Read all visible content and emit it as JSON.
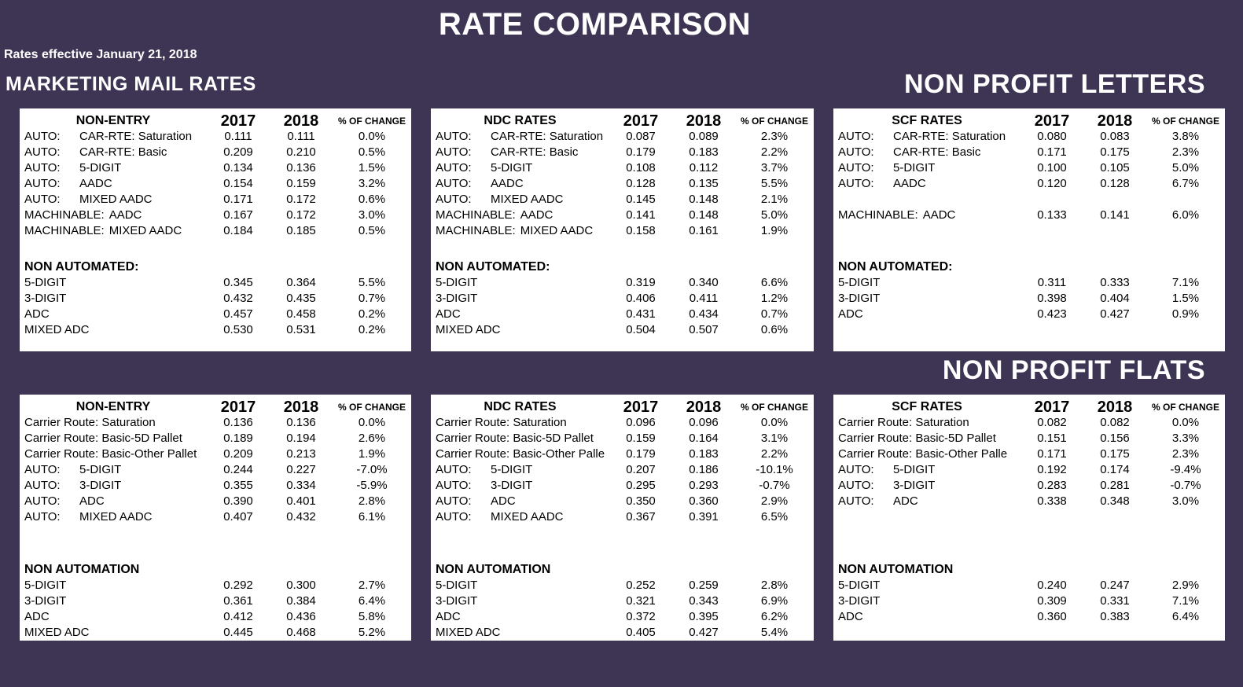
{
  "page": {
    "title": "RATE COMPARISON",
    "subtitle": "Rates effective January 21, 2018",
    "left_heading": "MARKETING MAIL RATES",
    "right_heading_letters": "NON PROFIT LETTERS",
    "right_heading_flats": "NON PROFIT FLATS"
  },
  "colors": {
    "background": "#3e3454",
    "table_background": "#ffffff",
    "table_text": "#000000",
    "heading_text": "#ffffff"
  },
  "columns": {
    "y2017": "2017",
    "y2018": "2018",
    "change": "% OF CHANGE"
  },
  "tables": [
    {
      "id": "letters-non-entry",
      "name": "NON-ENTRY",
      "rows": [
        {
          "type": "data",
          "prefix": "AUTO:",
          "label": "CAR-RTE: Saturation",
          "v2017": "0.111",
          "v2018": "0.111",
          "change": "0.0%"
        },
        {
          "type": "data",
          "prefix": "AUTO:",
          "label": "CAR-RTE: Basic",
          "v2017": "0.209",
          "v2018": "0.210",
          "change": "0.5%"
        },
        {
          "type": "data",
          "prefix": "AUTO:",
          "label": "5-DIGIT",
          "v2017": "0.134",
          "v2018": "0.136",
          "change": "1.5%"
        },
        {
          "type": "data",
          "prefix": "AUTO:",
          "label": "AADC",
          "v2017": "0.154",
          "v2018": "0.159",
          "change": "3.2%"
        },
        {
          "type": "data",
          "prefix": "AUTO:",
          "label": "MIXED AADC",
          "v2017": "0.171",
          "v2018": "0.172",
          "change": "0.6%"
        },
        {
          "type": "data",
          "prefix": "MACHINABLE:",
          "label": "AADC",
          "v2017": "0.167",
          "v2018": "0.172",
          "change": "3.0%"
        },
        {
          "type": "data",
          "prefix": "MACHINABLE:",
          "label": "MIXED AADC",
          "v2017": "0.184",
          "v2018": "0.185",
          "change": "0.5%"
        },
        {
          "type": "gap",
          "units": 1.3
        },
        {
          "type": "section",
          "label": "NON AUTOMATED:"
        },
        {
          "type": "data",
          "label": "5-DIGIT",
          "v2017": "0.345",
          "v2018": "0.364",
          "change": "5.5%"
        },
        {
          "type": "data",
          "label": "3-DIGIT",
          "v2017": "0.432",
          "v2018": "0.435",
          "change": "0.7%"
        },
        {
          "type": "data",
          "label": "ADC",
          "v2017": "0.457",
          "v2018": "0.458",
          "change": "0.2%"
        },
        {
          "type": "data",
          "label": "MIXED ADC",
          "v2017": "0.530",
          "v2018": "0.531",
          "change": "0.2%"
        }
      ]
    },
    {
      "id": "letters-ndc",
      "name": "NDC RATES",
      "rows": [
        {
          "type": "data",
          "prefix": "AUTO:",
          "label": "CAR-RTE: Saturation",
          "v2017": "0.087",
          "v2018": "0.089",
          "change": "2.3%"
        },
        {
          "type": "data",
          "prefix": "AUTO:",
          "label": "CAR-RTE: Basic",
          "v2017": "0.179",
          "v2018": "0.183",
          "change": "2.2%"
        },
        {
          "type": "data",
          "prefix": "AUTO:",
          "label": "5-DIGIT",
          "v2017": "0.108",
          "v2018": "0.112",
          "change": "3.7%"
        },
        {
          "type": "data",
          "prefix": "AUTO:",
          "label": "AADC",
          "v2017": "0.128",
          "v2018": "0.135",
          "change": "5.5%"
        },
        {
          "type": "data",
          "prefix": "AUTO:",
          "label": "MIXED AADC",
          "v2017": "0.145",
          "v2018": "0.148",
          "change": "2.1%"
        },
        {
          "type": "data",
          "prefix": "MACHINABLE:",
          "label": "AADC",
          "v2017": "0.141",
          "v2018": "0.148",
          "change": "5.0%"
        },
        {
          "type": "data",
          "prefix": "MACHINABLE:",
          "label": "MIXED AADC",
          "v2017": "0.158",
          "v2018": "0.161",
          "change": "1.9%"
        },
        {
          "type": "gap",
          "units": 1.3
        },
        {
          "type": "section",
          "label": "NON AUTOMATED:"
        },
        {
          "type": "data",
          "label": "5-DIGIT",
          "v2017": "0.319",
          "v2018": "0.340",
          "change": "6.6%"
        },
        {
          "type": "data",
          "label": "3-DIGIT",
          "v2017": "0.406",
          "v2018": "0.411",
          "change": "1.2%"
        },
        {
          "type": "data",
          "label": "ADC",
          "v2017": "0.431",
          "v2018": "0.434",
          "change": "0.7%"
        },
        {
          "type": "data",
          "label": "MIXED ADC",
          "v2017": "0.504",
          "v2018": "0.507",
          "change": "0.6%"
        }
      ]
    },
    {
      "id": "letters-scf",
      "name": "SCF RATES",
      "rows": [
        {
          "type": "data",
          "prefix": "AUTO:",
          "label": "CAR-RTE: Saturation",
          "v2017": "0.080",
          "v2018": "0.083",
          "change": "3.8%"
        },
        {
          "type": "data",
          "prefix": "AUTO:",
          "label": "CAR-RTE: Basic",
          "v2017": "0.171",
          "v2018": "0.175",
          "change": "2.3%"
        },
        {
          "type": "data",
          "prefix": "AUTO:",
          "label": "5-DIGIT",
          "v2017": "0.100",
          "v2018": "0.105",
          "change": "5.0%"
        },
        {
          "type": "data",
          "prefix": "AUTO:",
          "label": "AADC",
          "v2017": "0.120",
          "v2018": "0.128",
          "change": "6.7%"
        },
        {
          "type": "gap",
          "units": 1
        },
        {
          "type": "data",
          "prefix": "MACHINABLE:",
          "label": "AADC",
          "v2017": "0.133",
          "v2018": "0.141",
          "change": "6.0%"
        },
        {
          "type": "gap",
          "units": 1
        },
        {
          "type": "gap",
          "units": 1.3
        },
        {
          "type": "section",
          "label": "NON AUTOMATED:"
        },
        {
          "type": "data",
          "label": "5-DIGIT",
          "v2017": "0.311",
          "v2018": "0.333",
          "change": "7.1%"
        },
        {
          "type": "data",
          "label": "3-DIGIT",
          "v2017": "0.398",
          "v2018": "0.404",
          "change": "1.5%"
        },
        {
          "type": "data",
          "label": "ADC",
          "v2017": "0.423",
          "v2018": "0.427",
          "change": "0.9%"
        }
      ]
    },
    {
      "id": "flats-non-entry",
      "name": "NON-ENTRY",
      "rows": [
        {
          "type": "data",
          "label": "Carrier Route: Saturation",
          "v2017": "0.136",
          "v2018": "0.136",
          "change": "0.0%"
        },
        {
          "type": "data",
          "label": "Carrier Route: Basic-5D Pallet",
          "v2017": "0.189",
          "v2018": "0.194",
          "change": "2.6%"
        },
        {
          "type": "data",
          "label": "Carrier Route: Basic-Other Pallet",
          "v2017": "0.209",
          "v2018": "0.213",
          "change": "1.9%"
        },
        {
          "type": "data",
          "prefix": "AUTO:",
          "label": "5-DIGIT",
          "v2017": "0.244",
          "v2018": "0.227",
          "change": "-7.0%"
        },
        {
          "type": "data",
          "prefix": "AUTO:",
          "label": "3-DIGIT",
          "v2017": "0.355",
          "v2018": "0.334",
          "change": "-5.9%"
        },
        {
          "type": "data",
          "prefix": "AUTO:",
          "label": "ADC",
          "v2017": "0.390",
          "v2018": "0.401",
          "change": "2.8%"
        },
        {
          "type": "data",
          "prefix": "AUTO:",
          "label": "MIXED AADC",
          "v2017": "0.407",
          "v2018": "0.432",
          "change": "6.1%"
        },
        {
          "type": "gap",
          "units": 2.35
        },
        {
          "type": "section",
          "label": "NON AUTOMATION"
        },
        {
          "type": "data",
          "label": "5-DIGIT",
          "v2017": "0.292",
          "v2018": "0.300",
          "change": "2.7%"
        },
        {
          "type": "data",
          "label": "3-DIGIT",
          "v2017": "0.361",
          "v2018": "0.384",
          "change": "6.4%"
        },
        {
          "type": "data",
          "label": "ADC",
          "v2017": "0.412",
          "v2018": "0.436",
          "change": "5.8%"
        },
        {
          "type": "data",
          "label": "MIXED ADC",
          "v2017": "0.445",
          "v2018": "0.468",
          "change": "5.2%"
        }
      ]
    },
    {
      "id": "flats-ndc",
      "name": "NDC RATES",
      "rows": [
        {
          "type": "data",
          "label": "Carrier Route: Saturation",
          "v2017": "0.096",
          "v2018": "0.096",
          "change": "0.0%"
        },
        {
          "type": "data",
          "label": "Carrier Route: Basic-5D Pallet",
          "v2017": "0.159",
          "v2018": "0.164",
          "change": "3.1%"
        },
        {
          "type": "data",
          "label": "Carrier Route: Basic-Other Palle",
          "v2017": "0.179",
          "v2018": "0.183",
          "change": "2.2%"
        },
        {
          "type": "data",
          "prefix": "AUTO:",
          "label": "5-DIGIT",
          "v2017": "0.207",
          "v2018": "0.186",
          "change": "-10.1%"
        },
        {
          "type": "data",
          "prefix": "AUTO:",
          "label": "3-DIGIT",
          "v2017": "0.295",
          "v2018": "0.293",
          "change": "-0.7%"
        },
        {
          "type": "data",
          "prefix": "AUTO:",
          "label": "ADC",
          "v2017": "0.350",
          "v2018": "0.360",
          "change": "2.9%"
        },
        {
          "type": "data",
          "prefix": "AUTO:",
          "label": "MIXED AADC",
          "v2017": "0.367",
          "v2018": "0.391",
          "change": "6.5%"
        },
        {
          "type": "gap",
          "units": 2.35
        },
        {
          "type": "section",
          "label": "NON AUTOMATION"
        },
        {
          "type": "data",
          "label": "5-DIGIT",
          "v2017": "0.252",
          "v2018": "0.259",
          "change": "2.8%"
        },
        {
          "type": "data",
          "label": "3-DIGIT",
          "v2017": "0.321",
          "v2018": "0.343",
          "change": "6.9%"
        },
        {
          "type": "data",
          "label": "ADC",
          "v2017": "0.372",
          "v2018": "0.395",
          "change": "6.2%"
        },
        {
          "type": "data",
          "label": "MIXED ADC",
          "v2017": "0.405",
          "v2018": "0.427",
          "change": "5.4%"
        }
      ]
    },
    {
      "id": "flats-scf",
      "name": "SCF RATES",
      "rows": [
        {
          "type": "data",
          "label": "Carrier Route: Saturation",
          "v2017": "0.082",
          "v2018": "0.082",
          "change": "0.0%"
        },
        {
          "type": "data",
          "label": "Carrier Route: Basic-5D Pallet",
          "v2017": "0.151",
          "v2018": "0.156",
          "change": "3.3%"
        },
        {
          "type": "data",
          "label": "Carrier Route: Basic-Other Palle",
          "v2017": "0.171",
          "v2018": "0.175",
          "change": "2.3%"
        },
        {
          "type": "data",
          "prefix": "AUTO:",
          "label": "5-DIGIT",
          "v2017": "0.192",
          "v2018": "0.174",
          "change": "-9.4%"
        },
        {
          "type": "data",
          "prefix": "AUTO:",
          "label": "3-DIGIT",
          "v2017": "0.283",
          "v2018": "0.281",
          "change": "-0.7%"
        },
        {
          "type": "data",
          "prefix": "AUTO:",
          "label": "ADC",
          "v2017": "0.338",
          "v2018": "0.348",
          "change": "3.0%"
        },
        {
          "type": "gap",
          "units": 1
        },
        {
          "type": "gap",
          "units": 2.35
        },
        {
          "type": "section",
          "label": "NON AUTOMATION"
        },
        {
          "type": "data",
          "label": "5-DIGIT",
          "v2017": "0.240",
          "v2018": "0.247",
          "change": "2.9%"
        },
        {
          "type": "data",
          "label": "3-DIGIT",
          "v2017": "0.309",
          "v2018": "0.331",
          "change": "7.1%"
        },
        {
          "type": "data",
          "label": "ADC",
          "v2017": "0.360",
          "v2018": "0.383",
          "change": "6.4%"
        }
      ]
    }
  ]
}
